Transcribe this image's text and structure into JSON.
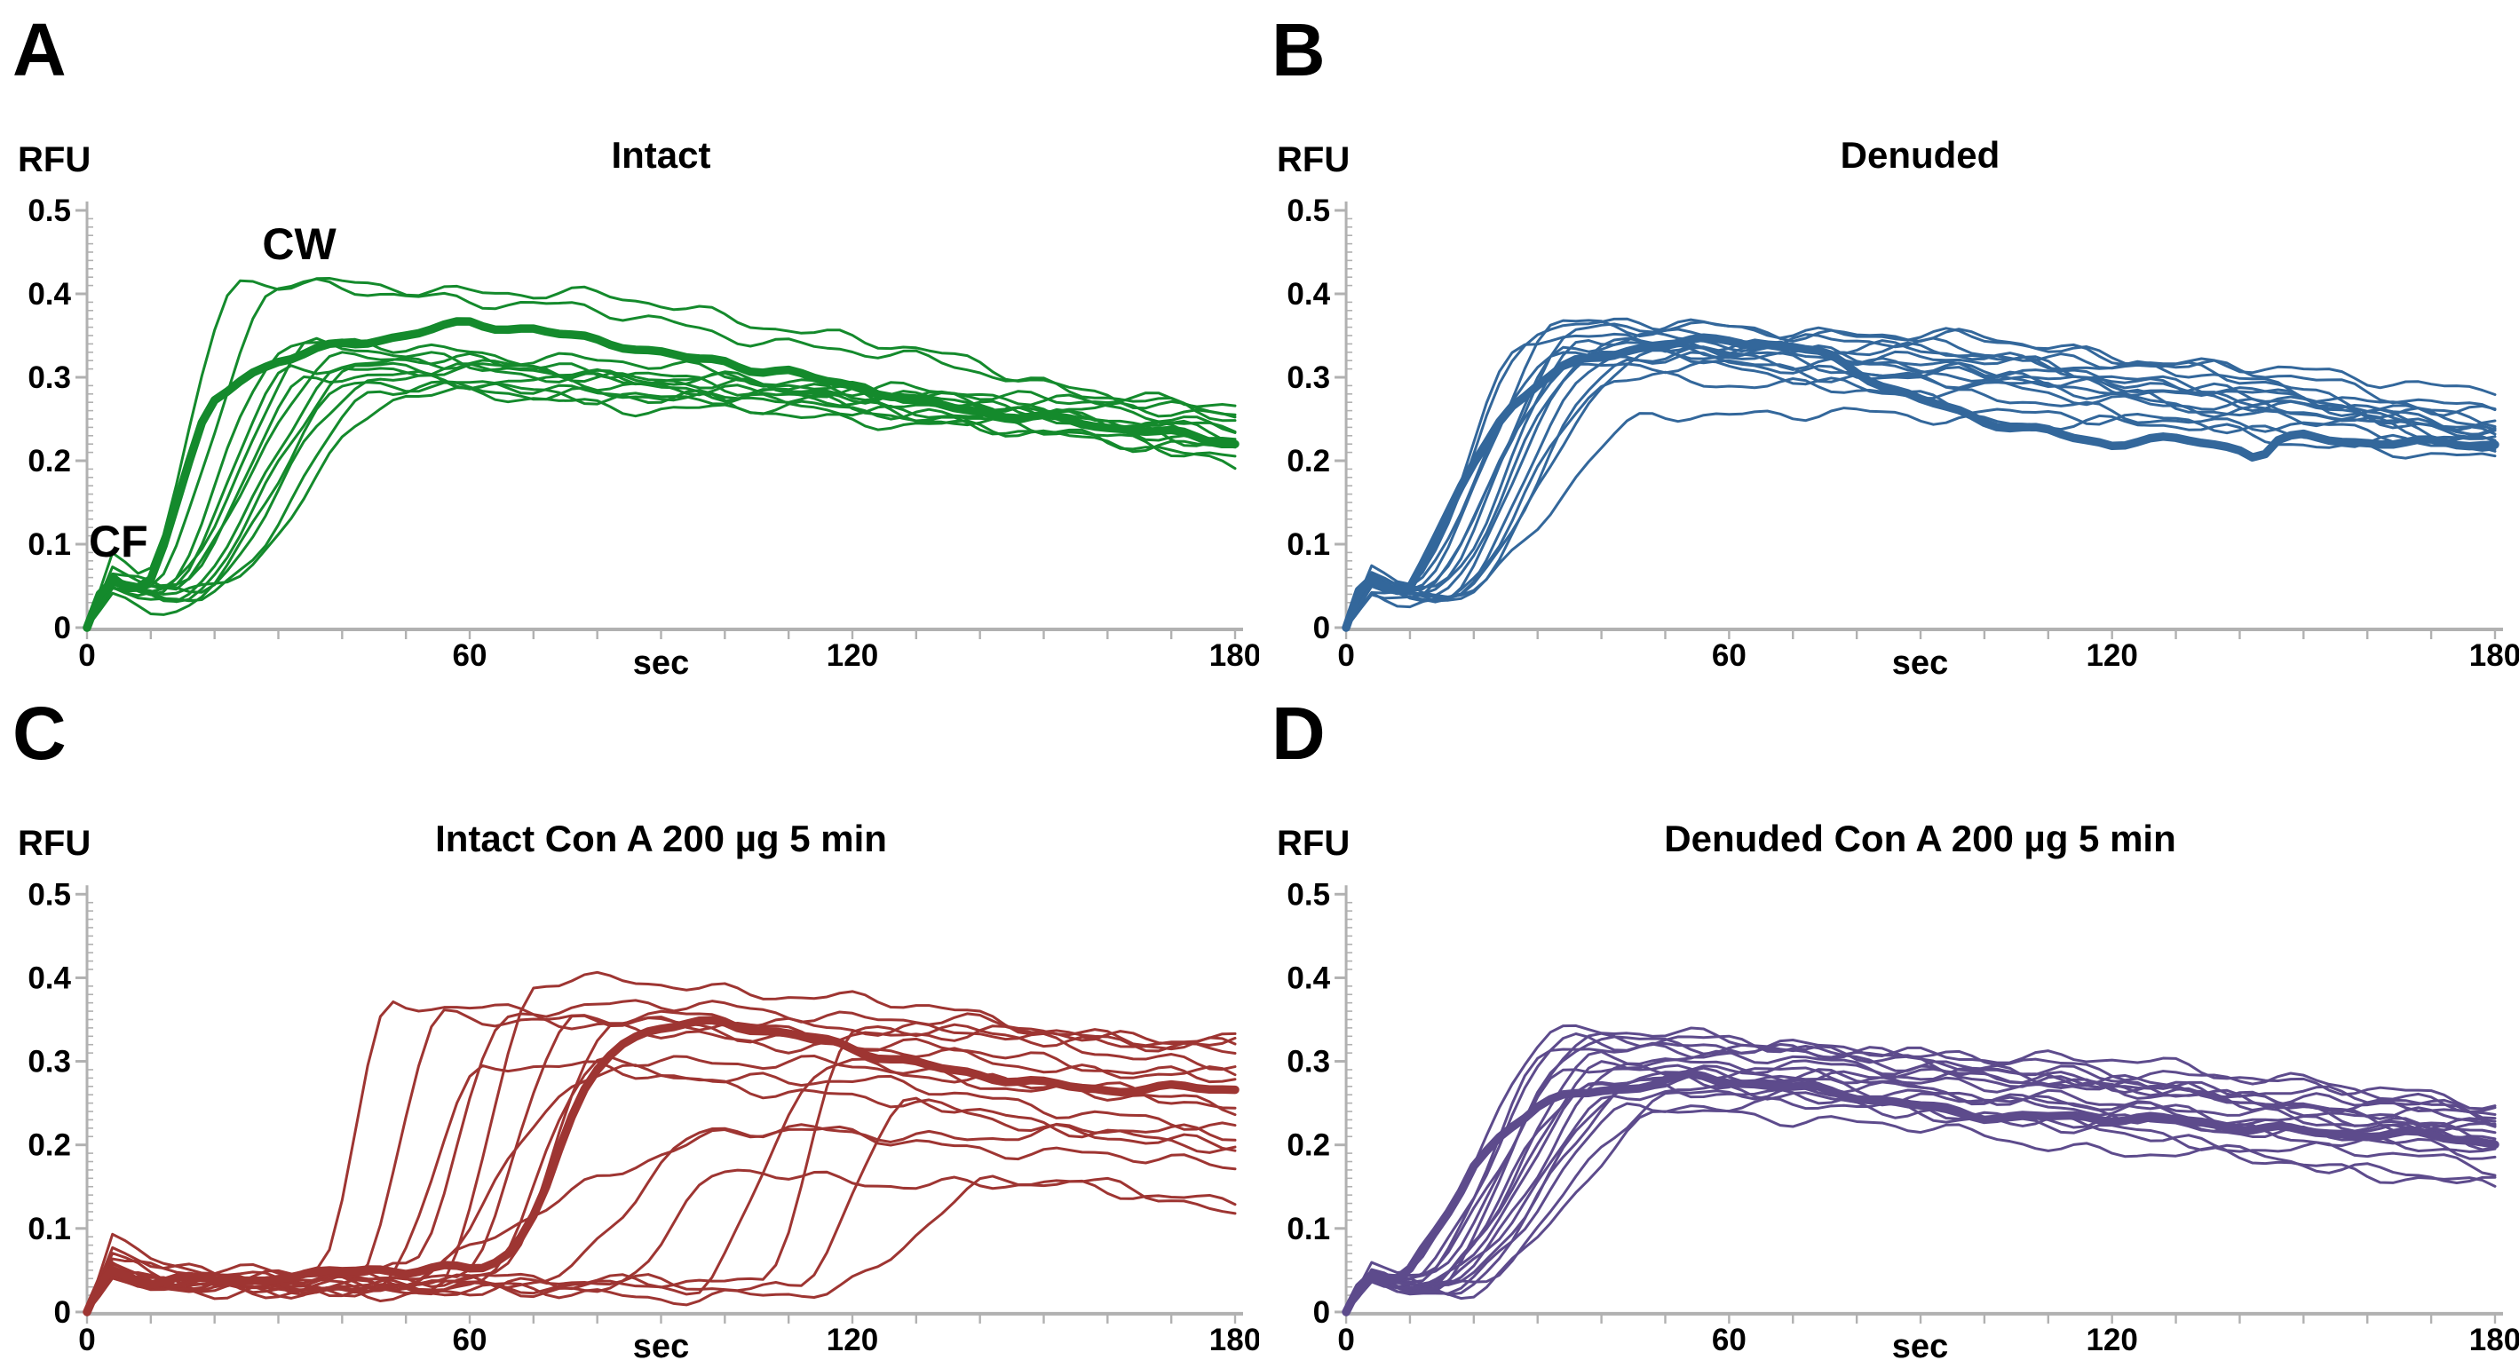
{
  "figure": {
    "ylabel_unit": "RFU",
    "xlabel_unit": "sec",
    "axis_color": "#b1b1b1",
    "text_color": "#000000",
    "background": "#ffffff"
  },
  "chart_data": [
    {
      "type": "line",
      "panel_letter": "A",
      "title": "Intact",
      "ylabel": "RFU",
      "xlabel": "sec",
      "color": "#148a2c",
      "xlim": [
        0,
        180
      ],
      "ylim": [
        0,
        0.5
      ],
      "x_tick_values": [
        0,
        60,
        120,
        180
      ],
      "x_tick_labels": [
        "0",
        "60",
        "120",
        "180"
      ],
      "y_tick_values": [
        0,
        0.1,
        0.2,
        0.3,
        0.4,
        0.5
      ],
      "y_tick_labels": [
        "0",
        "0.1",
        "0.2",
        "0.3",
        "0.4",
        "0.5"
      ],
      "x_minor_step": 10,
      "y_minor_step": 0.01,
      "grid": false,
      "legend": "none",
      "annotations": [
        {
          "label": "CW",
          "t": 33,
          "v": 0.45
        },
        {
          "label": "CF",
          "t": 1,
          "v": 0.11
        }
      ],
      "seed": 101,
      "mean_series": {
        "name": "mean",
        "x": [
          0,
          2,
          4,
          6,
          8,
          10,
          12,
          15,
          18,
          20,
          25,
          30,
          35,
          40,
          45,
          50,
          55,
          60,
          65,
          70,
          75,
          80,
          85,
          90,
          95,
          100,
          105,
          110,
          115,
          120,
          125,
          130,
          135,
          140,
          145,
          150,
          155,
          160,
          165,
          170,
          175,
          180
        ],
        "y": [
          0,
          0.04,
          0.055,
          0.05,
          0.048,
          0.06,
          0.1,
          0.17,
          0.24,
          0.27,
          0.305,
          0.325,
          0.335,
          0.345,
          0.35,
          0.355,
          0.36,
          0.365,
          0.36,
          0.358,
          0.35,
          0.345,
          0.34,
          0.33,
          0.32,
          0.315,
          0.305,
          0.3,
          0.29,
          0.285,
          0.28,
          0.27,
          0.265,
          0.26,
          0.255,
          0.25,
          0.245,
          0.24,
          0.238,
          0.235,
          0.23,
          0.228
        ]
      },
      "replicates": [
        {
          "onset": 8,
          "rise": 16,
          "peak": 0.415,
          "end": 0.25,
          "bump": 0.09,
          "fall": 1.8
        },
        {
          "onset": 10,
          "rise": 20,
          "peak": 0.4,
          "end": 0.24,
          "bump": 0.075,
          "fall": 1.8
        },
        {
          "onset": 11,
          "rise": 20,
          "peak": 0.335,
          "end": 0.235,
          "bump": 0.065
        },
        {
          "onset": 12,
          "rise": 24,
          "peak": 0.33,
          "end": 0.22,
          "bump": 0.06
        },
        {
          "onset": 13,
          "rise": 26,
          "peak": 0.325,
          "end": 0.24,
          "bump": 0.06
        },
        {
          "onset": 11,
          "rise": 22,
          "peak": 0.32,
          "end": 0.21,
          "bump": 0.055
        },
        {
          "onset": 14,
          "rise": 26,
          "peak": 0.315,
          "end": 0.225,
          "bump": 0.05
        },
        {
          "onset": 15,
          "rise": 28,
          "peak": 0.31,
          "end": 0.245,
          "bump": 0.05
        },
        {
          "onset": 12,
          "rise": 24,
          "peak": 0.3,
          "end": 0.22,
          "bump": 0.045
        },
        {
          "onset": 16,
          "rise": 30,
          "peak": 0.3,
          "end": 0.26,
          "bump": 0.05
        },
        {
          "onset": 17,
          "rise": 30,
          "peak": 0.295,
          "end": 0.205,
          "bump": 0.045
        },
        {
          "onset": 14,
          "rise": 28,
          "peak": 0.285,
          "end": 0.215,
          "bump": 0.04
        },
        {
          "onset": 18,
          "rise": 32,
          "peak": 0.28,
          "end": 0.23,
          "bump": 0.05
        }
      ]
    },
    {
      "type": "line",
      "panel_letter": "B",
      "title": "Denuded",
      "ylabel": "RFU",
      "xlabel": "sec",
      "color": "#33679b",
      "xlim": [
        0,
        180
      ],
      "ylim": [
        0,
        0.5
      ],
      "x_tick_values": [
        0,
        60,
        120,
        180
      ],
      "x_tick_labels": [
        "0",
        "60",
        "120",
        "180"
      ],
      "y_tick_values": [
        0,
        0.1,
        0.2,
        0.3,
        0.4,
        0.5
      ],
      "y_tick_labels": [
        "0",
        "0.1",
        "0.2",
        "0.3",
        "0.4",
        "0.5"
      ],
      "x_minor_step": 10,
      "y_minor_step": 0.01,
      "grid": false,
      "legend": "none",
      "annotations": [],
      "seed": 202,
      "mean_series": {
        "name": "mean",
        "x": [
          0,
          2,
          4,
          6,
          8,
          10,
          12,
          15,
          18,
          20,
          25,
          30,
          35,
          40,
          45,
          50,
          55,
          60,
          65,
          70,
          75,
          80,
          85,
          90,
          95,
          100,
          105,
          110,
          115,
          120,
          125,
          130,
          135,
          140,
          143,
          146,
          150,
          155,
          160,
          165,
          170,
          175,
          180
        ],
        "y": [
          0,
          0.045,
          0.06,
          0.052,
          0.05,
          0.055,
          0.08,
          0.12,
          0.17,
          0.2,
          0.26,
          0.29,
          0.31,
          0.32,
          0.33,
          0.335,
          0.34,
          0.345,
          0.34,
          0.335,
          0.325,
          0.305,
          0.285,
          0.27,
          0.26,
          0.25,
          0.245,
          0.24,
          0.23,
          0.225,
          0.23,
          0.225,
          0.222,
          0.215,
          0.205,
          0.225,
          0.23,
          0.228,
          0.225,
          0.222,
          0.22,
          0.218,
          0.215
        ]
      },
      "replicates": [
        {
          "onset": 9,
          "rise": 22,
          "peak": 0.37,
          "end": 0.27,
          "bump": 0.07
        },
        {
          "onset": 10,
          "rise": 24,
          "peak": 0.365,
          "end": 0.25,
          "bump": 0.06
        },
        {
          "onset": 11,
          "rise": 26,
          "peak": 0.36,
          "end": 0.29,
          "bump": 0.065
        },
        {
          "onset": 12,
          "rise": 26,
          "peak": 0.35,
          "end": 0.24,
          "bump": 0.055
        },
        {
          "onset": 9,
          "rise": 20,
          "peak": 0.345,
          "end": 0.23,
          "bump": 0.06
        },
        {
          "onset": 13,
          "rise": 28,
          "peak": 0.345,
          "end": 0.26,
          "bump": 0.05
        },
        {
          "onset": 12,
          "rise": 24,
          "peak": 0.34,
          "end": 0.22,
          "bump": 0.055
        },
        {
          "onset": 14,
          "rise": 28,
          "peak": 0.335,
          "end": 0.25,
          "bump": 0.05
        },
        {
          "onset": 10,
          "rise": 22,
          "peak": 0.33,
          "end": 0.235,
          "bump": 0.06
        },
        {
          "onset": 15,
          "rise": 30,
          "peak": 0.33,
          "end": 0.245,
          "bump": 0.045
        },
        {
          "onset": 13,
          "rise": 26,
          "peak": 0.325,
          "end": 0.22,
          "bump": 0.05
        },
        {
          "onset": 16,
          "rise": 30,
          "peak": 0.32,
          "end": 0.23,
          "bump": 0.045
        },
        {
          "onset": 11,
          "rise": 24,
          "peak": 0.31,
          "end": 0.21,
          "bump": 0.05
        },
        {
          "onset": 14,
          "rise": 30,
          "peak": 0.295,
          "end": 0.205,
          "bump": 0.045
        },
        {
          "onset": 16,
          "rise": 34,
          "peak": 0.265,
          "end": 0.2,
          "bump": 0.05
        }
      ]
    },
    {
      "type": "line",
      "panel_letter": "C",
      "title": "Intact Con A 200 µg 5 min",
      "ylabel": "RFU",
      "xlabel": "sec",
      "color": "#9e3532",
      "xlim": [
        0,
        180
      ],
      "ylim": [
        0,
        0.5
      ],
      "x_tick_values": [
        0,
        60,
        120,
        180
      ],
      "x_tick_labels": [
        "0",
        "60",
        "120",
        "180"
      ],
      "y_tick_values": [
        0,
        0.1,
        0.2,
        0.3,
        0.4,
        0.5
      ],
      "y_tick_labels": [
        "0",
        "0.1",
        "0.2",
        "0.3",
        "0.4",
        "0.5"
      ],
      "x_minor_step": 10,
      "y_minor_step": 0.01,
      "grid": false,
      "legend": "none",
      "annotations": [],
      "seed": 303,
      "mean_series": {
        "name": "mean",
        "x": [
          0,
          2,
          4,
          6,
          8,
          10,
          15,
          20,
          25,
          30,
          35,
          40,
          45,
          50,
          55,
          60,
          63,
          66,
          69,
          72,
          75,
          78,
          81,
          84,
          87,
          90,
          95,
          100,
          105,
          110,
          115,
          120,
          125,
          130,
          135,
          140,
          145,
          150,
          155,
          160,
          165,
          170,
          175,
          180
        ],
        "y": [
          0,
          0.035,
          0.05,
          0.045,
          0.04,
          0.042,
          0.045,
          0.042,
          0.04,
          0.045,
          0.042,
          0.045,
          0.048,
          0.045,
          0.048,
          0.05,
          0.055,
          0.07,
          0.1,
          0.15,
          0.21,
          0.26,
          0.3,
          0.32,
          0.33,
          0.335,
          0.34,
          0.345,
          0.34,
          0.335,
          0.33,
          0.32,
          0.31,
          0.3,
          0.29,
          0.285,
          0.28,
          0.275,
          0.272,
          0.27,
          0.272,
          0.27,
          0.268,
          0.265
        ]
      },
      "replicates": [
        {
          "onset": 36,
          "rise": 12,
          "peak": 0.37,
          "end": 0.33,
          "bump": 0.09,
          "fall": 1.2
        },
        {
          "onset": 42,
          "rise": 14,
          "peak": 0.36,
          "end": 0.3,
          "bump": 0.075
        },
        {
          "onset": 45,
          "rise": 18,
          "peak": 0.3,
          "end": 0.2,
          "bump": 0.06,
          "fall": 1.0
        },
        {
          "onset": 50,
          "rise": 16,
          "peak": 0.35,
          "end": 0.32,
          "bump": 0.065
        },
        {
          "onset": 55,
          "rise": 16,
          "peak": 0.395,
          "end": 0.31,
          "bump": 0.07
        },
        {
          "onset": 57,
          "rise": 20,
          "peak": 0.35,
          "end": 0.27,
          "bump": 0.055
        },
        {
          "onset": 60,
          "rise": 22,
          "peak": 0.3,
          "end": 0.25,
          "bump": 0.05
        },
        {
          "onset": 63,
          "rise": 20,
          "peak": 0.33,
          "end": 0.28,
          "bump": 0.06
        },
        {
          "onset": 47,
          "rise": 34,
          "peak": 0.285,
          "end": 0.22,
          "bump": 0.05
        },
        {
          "onset": 70,
          "rise": 28,
          "peak": 0.22,
          "end": 0.21,
          "bump": 0.045
        },
        {
          "onset": 80,
          "rise": 22,
          "peak": 0.17,
          "end": 0.13,
          "bump": 0.04
        },
        {
          "onset": 95,
          "rise": 22,
          "peak": 0.3,
          "end": 0.24,
          "bump": 0.05
        },
        {
          "onset": 105,
          "rise": 16,
          "peak": 0.33,
          "end": 0.32,
          "bump": 0.055
        },
        {
          "onset": 110,
          "rise": 20,
          "peak": 0.25,
          "end": 0.19,
          "bump": 0.045
        },
        {
          "onset": 115,
          "rise": 28,
          "peak": 0.16,
          "end": 0.11,
          "bump": 0.04
        },
        {
          "onset": 40,
          "rise": 64,
          "peak": 0.21,
          "end": 0.18,
          "bump": 0.05
        }
      ]
    },
    {
      "type": "line",
      "panel_letter": "D",
      "title": "Denuded Con A 200 µg 5 min",
      "ylabel": "RFU",
      "xlabel": "sec",
      "color": "#5d4b8c",
      "xlim": [
        0,
        180
      ],
      "ylim": [
        0,
        0.5
      ],
      "x_tick_values": [
        0,
        60,
        120,
        180
      ],
      "x_tick_labels": [
        "0",
        "60",
        "120",
        "180"
      ],
      "y_tick_values": [
        0,
        0.1,
        0.2,
        0.3,
        0.4,
        0.5
      ],
      "y_tick_labels": [
        "0",
        "0.1",
        "0.2",
        "0.3",
        "0.4",
        "0.5"
      ],
      "x_minor_step": 10,
      "y_minor_step": 0.01,
      "grid": false,
      "legend": "none",
      "annotations": [],
      "seed": 404,
      "mean_series": {
        "name": "mean",
        "x": [
          0,
          2,
          4,
          6,
          8,
          10,
          12,
          15,
          18,
          20,
          25,
          30,
          35,
          40,
          45,
          50,
          55,
          60,
          65,
          70,
          75,
          80,
          85,
          90,
          95,
          100,
          105,
          110,
          115,
          120,
          125,
          130,
          135,
          140,
          145,
          150,
          155,
          160,
          165,
          170,
          175,
          180
        ],
        "y": [
          0,
          0.03,
          0.045,
          0.04,
          0.042,
          0.05,
          0.07,
          0.1,
          0.14,
          0.17,
          0.215,
          0.24,
          0.255,
          0.265,
          0.27,
          0.28,
          0.285,
          0.28,
          0.275,
          0.27,
          0.265,
          0.26,
          0.255,
          0.25,
          0.245,
          0.24,
          0.238,
          0.235,
          0.232,
          0.23,
          0.228,
          0.225,
          0.222,
          0.22,
          0.218,
          0.215,
          0.212,
          0.21,
          0.208,
          0.206,
          0.203,
          0.2
        ]
      },
      "replicates": [
        {
          "onset": 9,
          "rise": 24,
          "peak": 0.335,
          "end": 0.24,
          "bump": 0.055
        },
        {
          "onset": 10,
          "rise": 26,
          "peak": 0.33,
          "end": 0.25,
          "bump": 0.05
        },
        {
          "onset": 11,
          "rise": 28,
          "peak": 0.325,
          "end": 0.23,
          "bump": 0.05
        },
        {
          "onset": 12,
          "rise": 26,
          "peak": 0.32,
          "end": 0.22,
          "bump": 0.045
        },
        {
          "onset": 10,
          "rise": 24,
          "peak": 0.315,
          "end": 0.235,
          "bump": 0.05
        },
        {
          "onset": 13,
          "rise": 28,
          "peak": 0.31,
          "end": 0.21,
          "bump": 0.045
        },
        {
          "onset": 12,
          "rise": 30,
          "peak": 0.3,
          "end": 0.24,
          "bump": 0.04
        },
        {
          "onset": 14,
          "rise": 30,
          "peak": 0.295,
          "end": 0.22,
          "bump": 0.045
        },
        {
          "onset": 11,
          "rise": 26,
          "peak": 0.29,
          "end": 0.2,
          "bump": 0.05
        },
        {
          "onset": 15,
          "rise": 32,
          "peak": 0.285,
          "end": 0.23,
          "bump": 0.04
        },
        {
          "onset": 13,
          "rise": 28,
          "peak": 0.28,
          "end": 0.19,
          "bump": 0.045
        },
        {
          "onset": 16,
          "rise": 32,
          "peak": 0.275,
          "end": 0.215,
          "bump": 0.04
        },
        {
          "onset": 12,
          "rise": 28,
          "peak": 0.27,
          "end": 0.18,
          "bump": 0.045
        },
        {
          "onset": 17,
          "rise": 34,
          "peak": 0.265,
          "end": 0.21,
          "bump": 0.04
        },
        {
          "onset": 14,
          "rise": 30,
          "peak": 0.26,
          "end": 0.17,
          "bump": 0.04
        },
        {
          "onset": 18,
          "rise": 34,
          "peak": 0.25,
          "end": 0.155,
          "bump": 0.04
        },
        {
          "onset": 15,
          "rise": 32,
          "peak": 0.24,
          "end": 0.145,
          "bump": 0.035
        }
      ]
    }
  ]
}
